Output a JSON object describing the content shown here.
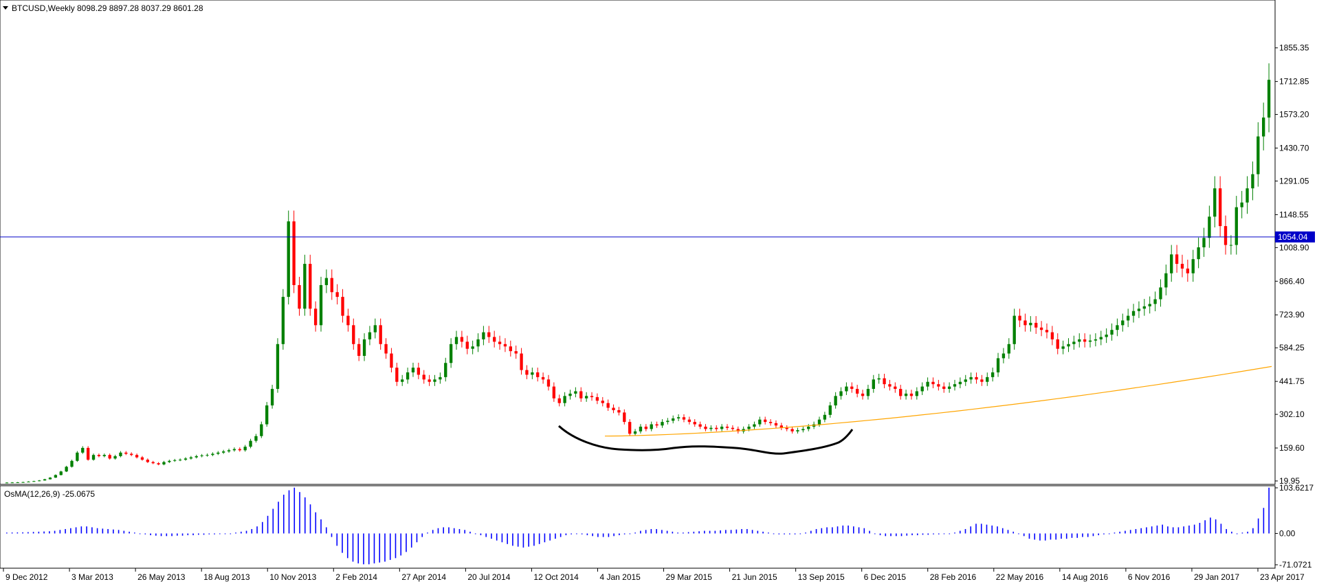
{
  "header": {
    "symbol": "BTCUSD,Weekly",
    "ohlc": "8098.29 8897.28 8037.29 8601.28"
  },
  "indicator": {
    "label": "OsMA(12,26,9) -25.0675"
  },
  "colors": {
    "bull": "#008000",
    "bear": "#ff0000",
    "wick_bull": "#008000",
    "wick_bear": "#ff0000",
    "hline": "#0000c8",
    "hline_tag_bg": "#0000c8",
    "ma": "#ffa500",
    "osma": "#0000ff",
    "hand_curve": "#000000"
  },
  "chart_data": [
    {
      "type": "candlestick",
      "title": "BTCUSD,Weekly",
      "ylim": [
        19.95,
        2000
      ],
      "y_ticks": [
        "1855.35",
        "1712.85",
        "1573.20",
        "1430.70",
        "1291.05",
        "1148.55",
        "1008.90",
        "866.40",
        "723.90",
        "584.25",
        "441.75",
        "302.10",
        "159.60",
        "19.95"
      ],
      "x_ticks": [
        "9 Dec 2012",
        "3 Mar 2013",
        "26 May 2013",
        "18 Aug 2013",
        "10 Nov 2013",
        "2 Feb 2014",
        "27 Apr 2014",
        "20 Jul 2014",
        "12 Oct 2014",
        "4 Jan 2015",
        "29 Mar 2015",
        "21 Jun 2015",
        "13 Sep 2015",
        "6 Dec 2015",
        "28 Feb 2016",
        "22 May 2016",
        "14 Aug 2016",
        "6 Nov 2016",
        "29 Jan 2017",
        "23 Apr 2017"
      ],
      "horizontal_line": {
        "value": 1054.04,
        "label": "1054.04"
      },
      "close_series": [
        13,
        13.5,
        14,
        15,
        17,
        19,
        22,
        27,
        34,
        45,
        60,
        80,
        105,
        140,
        160,
        110,
        130,
        125,
        130,
        115,
        125,
        140,
        135,
        130,
        120,
        110,
        100,
        95,
        90,
        100,
        105,
        108,
        110,
        115,
        120,
        125,
        128,
        130,
        135,
        140,
        145,
        150,
        155,
        150,
        165,
        190,
        210,
        260,
        340,
        410,
        600,
        800,
        1120,
        850,
        750,
        940,
        750,
        680,
        850,
        880,
        820,
        800,
        720,
        680,
        600,
        550,
        620,
        650,
        680,
        600,
        560,
        500,
        440,
        450,
        480,
        500,
        470,
        450,
        440,
        450,
        460,
        520,
        600,
        630,
        610,
        580,
        590,
        620,
        650,
        630,
        610,
        600,
        590,
        570,
        560,
        490,
        470,
        480,
        460,
        450,
        420,
        370,
        350,
        380,
        390,
        400,
        370,
        380,
        375,
        360,
        350,
        330,
        320,
        310,
        270,
        220,
        230,
        250,
        240,
        260,
        255,
        270,
        275,
        285,
        290,
        280,
        270,
        260,
        250,
        240,
        245,
        240,
        250,
        245,
        240,
        230,
        240,
        250,
        260,
        280,
        270,
        265,
        255,
        245,
        240,
        230,
        235,
        240,
        250,
        260,
        280,
        300,
        340,
        380,
        400,
        420,
        410,
        390,
        380,
        410,
        450,
        455,
        430,
        420,
        410,
        380,
        390,
        380,
        400,
        420,
        440,
        430,
        420,
        410,
        420,
        430,
        440,
        450,
        460,
        450,
        440,
        460,
        480,
        540,
        560,
        600,
        720,
        700,
        680,
        690,
        670,
        660,
        650,
        620,
        580,
        590,
        600,
        610,
        620,
        610,
        615,
        620,
        630,
        640,
        660,
        680,
        700,
        720,
        740,
        750,
        760,
        770,
        790,
        840,
        900,
        980,
        940,
        920,
        900,
        960,
        1010,
        1050,
        1140,
        1260,
        1100,
        1020,
        1020,
        1180,
        1200,
        1260,
        1320,
        1480,
        1560,
        1720
      ],
      "ma_start": 210,
      "ma_end": 505
    },
    {
      "type": "bar",
      "title": "OsMA(12,26,9) -25.0675",
      "ylim": [
        -71.0721,
        103.6217
      ],
      "y_ticks": [
        "103.6217",
        "0.00",
        "-71.0721"
      ],
      "values": [
        2,
        2.2,
        2.4,
        2.6,
        3,
        3.5,
        4,
        4.5,
        5,
        6,
        8,
        10,
        12,
        14,
        16,
        16,
        14,
        12,
        11,
        10,
        9,
        8,
        6,
        4,
        2,
        0,
        -2,
        -4,
        -5,
        -6,
        -6,
        -6,
        -5,
        -5,
        -4,
        -4,
        -3,
        -3,
        -2,
        -2,
        -1,
        -1,
        0,
        2,
        4,
        6,
        10,
        16,
        26,
        40,
        56,
        72,
        88,
        98,
        104,
        94,
        82,
        66,
        48,
        32,
        14,
        -8,
        -28,
        -44,
        -56,
        -64,
        -68,
        -70,
        -70,
        -68,
        -66,
        -64,
        -60,
        -56,
        -50,
        -42,
        -32,
        -20,
        -8,
        2,
        8,
        12,
        14,
        14,
        12,
        10,
        8,
        4,
        0,
        -4,
        -8,
        -12,
        -16,
        -20,
        -24,
        -28,
        -30,
        -32,
        -30,
        -28,
        -24,
        -20,
        -16,
        -12,
        -8,
        -4,
        -2,
        0,
        -2,
        -4,
        -6,
        -8,
        -8,
        -8,
        -6,
        -4,
        -2,
        0,
        2,
        6,
        8,
        10,
        10,
        8,
        6,
        4,
        2,
        2,
        3,
        4,
        5,
        6,
        6,
        6,
        7,
        8,
        8,
        9,
        10,
        10,
        8,
        6,
        4,
        2,
        0,
        -2,
        -2,
        -2,
        -2,
        0,
        2,
        6,
        10,
        12,
        14,
        14,
        16,
        18,
        18,
        16,
        14,
        12,
        6,
        0,
        -4,
        -6,
        -6,
        -6,
        -6,
        -5,
        -4,
        -4,
        -3,
        -3,
        -2,
        -2,
        -1,
        0,
        2,
        6,
        10,
        16,
        22,
        22,
        20,
        18,
        16,
        12,
        8,
        4,
        0,
        -6,
        -12,
        -14,
        -16,
        -16,
        -14,
        -14,
        -12,
        -12,
        -10,
        -10,
        -8,
        -8,
        -6,
        -4,
        -2,
        0,
        2,
        4,
        6,
        8,
        10,
        12,
        14,
        16,
        18,
        20,
        16,
        14,
        14,
        16,
        18,
        20,
        24,
        30,
        36,
        32,
        22,
        10,
        4,
        0,
        2,
        4,
        12,
        34,
        58,
        104
      ]
    }
  ]
}
